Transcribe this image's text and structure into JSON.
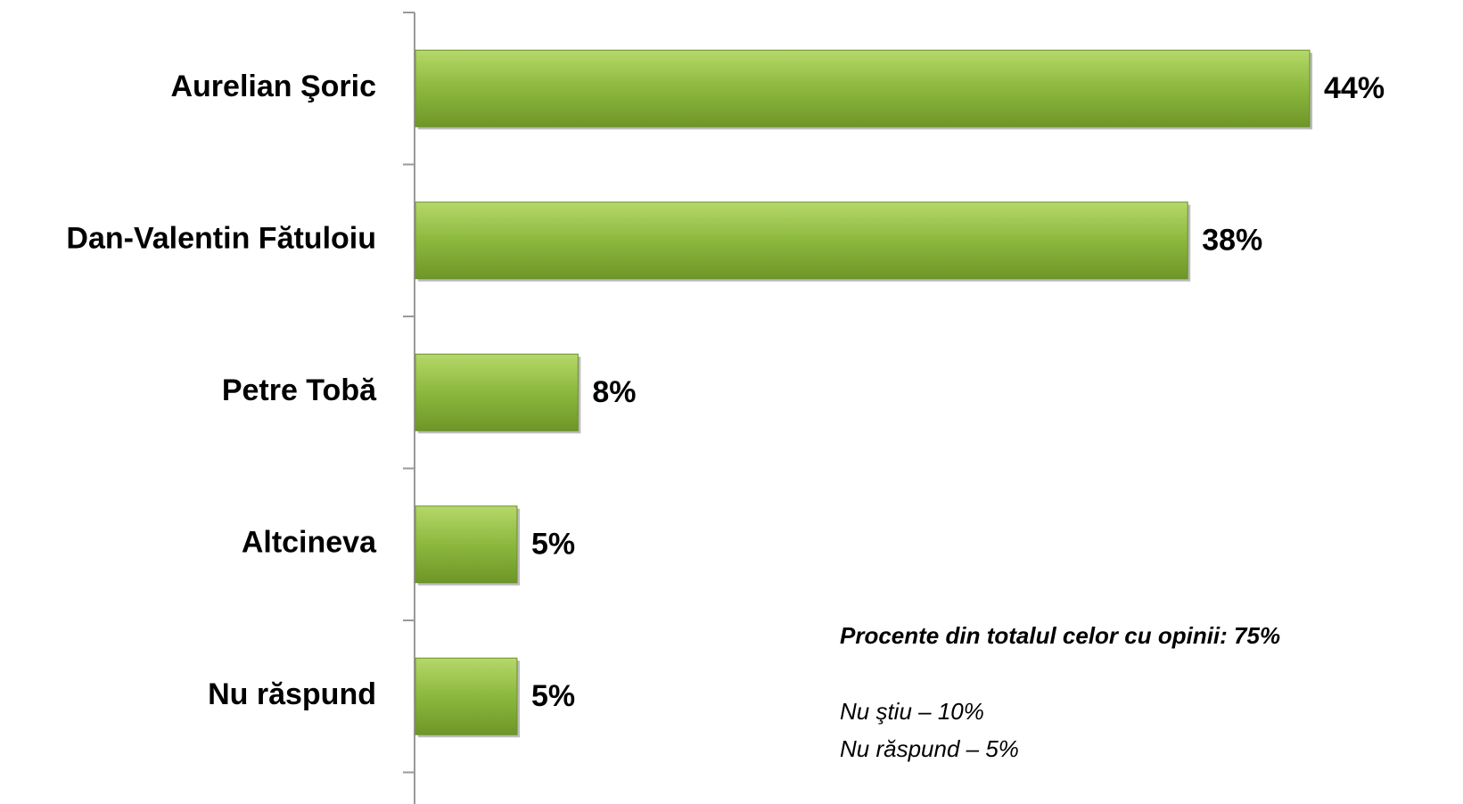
{
  "chart_data": {
    "type": "bar",
    "orientation": "horizontal",
    "categories": [
      "Aurelian Şoric",
      "Dan-Valentin Fătuloiu",
      "Petre Tobă",
      "Altcineva",
      "Nu răspund"
    ],
    "values": [
      44,
      38,
      8,
      5,
      5
    ],
    "value_labels": [
      "44%",
      "38%",
      "8%",
      "5%",
      "5%"
    ],
    "color": "#8cb83e",
    "annotations": [
      "Procente din totalul celor cu opinii: 75%",
      "Nu ştiu – 10%",
      "Nu răspund – 5%"
    ]
  }
}
